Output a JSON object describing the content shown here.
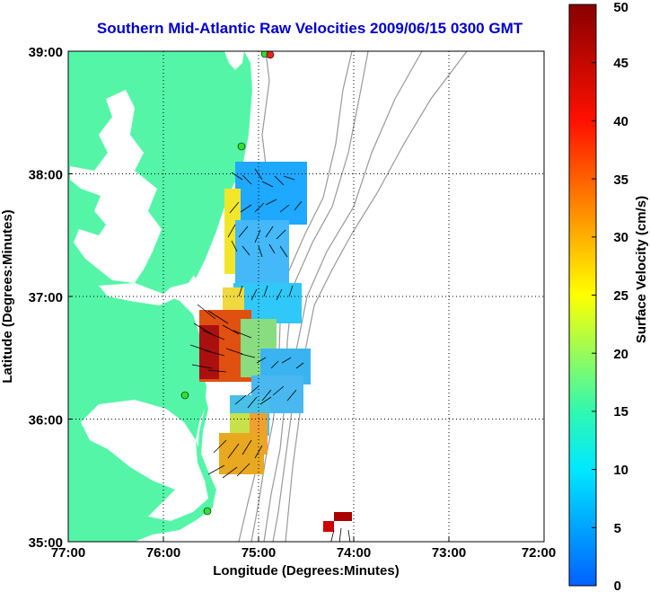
{
  "title": "Southern Mid-Atlantic Raw Velocities 2009/06/15 0300 GMT",
  "x_axis": {
    "label": "Longitude (Degrees:Minutes)",
    "ticks": [
      "77:00",
      "76:00",
      "75:00",
      "74:00",
      "73:00",
      "72:00"
    ]
  },
  "y_axis": {
    "label": "Latitude (Degrees:Minutes)",
    "ticks": [
      "39:00",
      "38:00",
      "37:00",
      "36:00",
      "35:00"
    ]
  },
  "colorbar": {
    "label": "Surface Velocity (cm/s)",
    "ticks": [
      "0",
      "5",
      "10",
      "15",
      "20",
      "25",
      "30",
      "35",
      "40",
      "45",
      "50"
    ],
    "range": [
      0,
      50
    ],
    "colors": [
      "#0000ff",
      "#00ffff",
      "#ffff00",
      "#ff0000",
      "#800000"
    ]
  },
  "map": {
    "lon_range": [
      -77,
      -72
    ],
    "lat_range": [
      35,
      39
    ],
    "grid": "dotted",
    "land_color": "#55f5a8",
    "water_color": "#ffffff",
    "bathymetry_color": "#999999",
    "station_color": "#33dd33"
  }
}
